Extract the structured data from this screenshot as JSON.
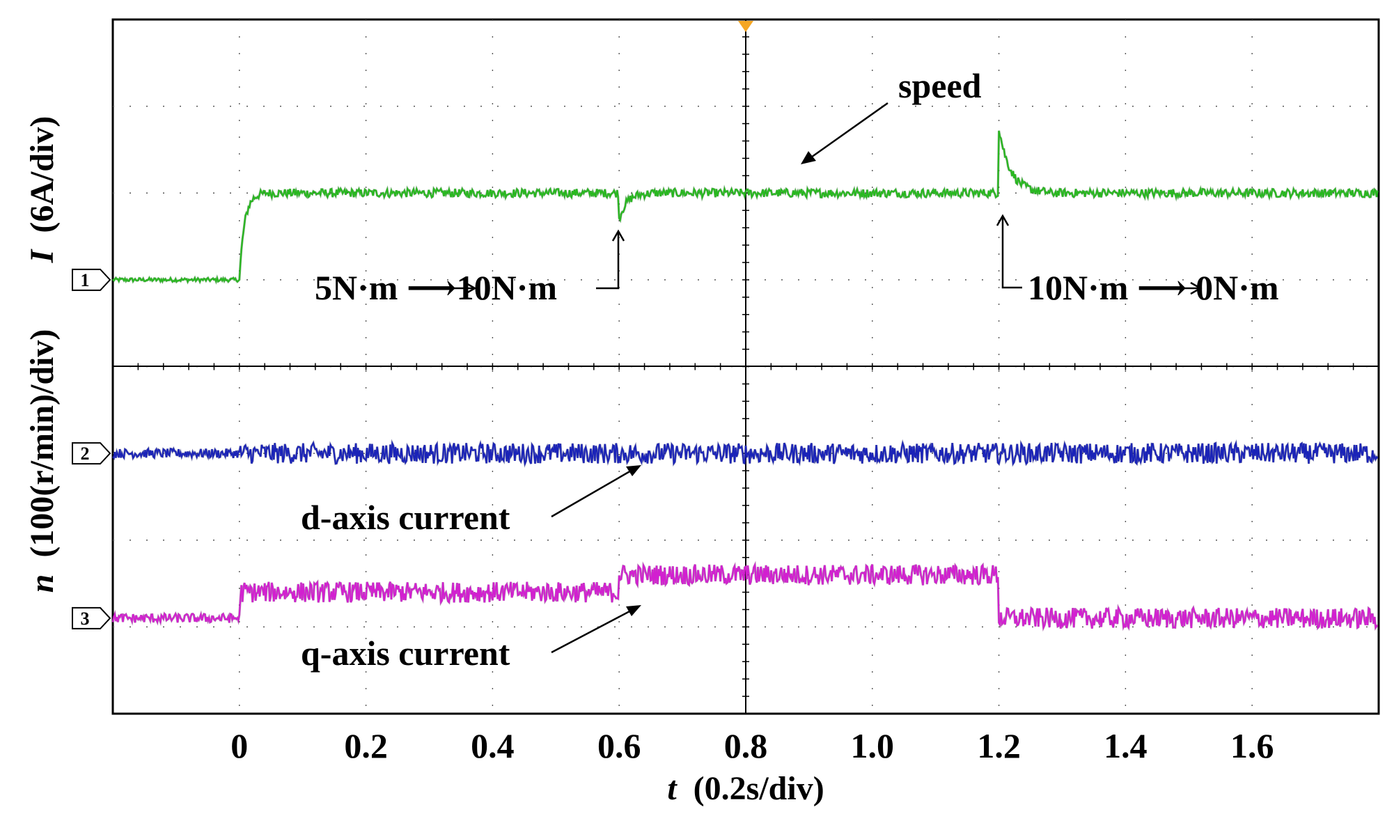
{
  "chart_data": {
    "type": "line",
    "title": "",
    "xlabel_var": "t",
    "xlabel_unit": "(0.2s/div)",
    "ylabel_top_var": "I",
    "ylabel_top_unit": "(6A/div)",
    "ylabel_bottom_var": "n",
    "ylabel_bottom_unit": "(100(r/min)/div)",
    "x_ticks": [
      "0",
      "0.2",
      "0.4",
      "0.6",
      "0.8",
      "1.0",
      "1.2",
      "1.4",
      "1.6"
    ],
    "xlim": [
      -0.2,
      1.8
    ],
    "ylim_div": [
      0,
      8
    ],
    "grid": true,
    "series": [
      {
        "name": "speed",
        "channel": "1",
        "color": "#27b81e",
        "dark": "#136e10",
        "baseline_div": 5.0,
        "events": [
          {
            "t": 0.0,
            "level_div": 6.0,
            "note": "startup step"
          },
          {
            "t": 0.6,
            "dip_div": -0.3,
            "note": "load 5N·m→10N·m"
          },
          {
            "t": 1.2,
            "spike_div": 0.75,
            "note": "load 10N·m→0N·m"
          }
        ]
      },
      {
        "name": "d-axis current",
        "channel": "2",
        "color": "#1a23b8",
        "dark": "#0d136b",
        "baseline_div": 3.0,
        "events": []
      },
      {
        "name": "q-axis current",
        "channel": "3",
        "color": "#d21fd0",
        "dark": "#7a1278",
        "baseline_div": 1.1,
        "events": [
          {
            "t": 0.0,
            "level_div": 1.4
          },
          {
            "t": 0.6,
            "level_div": 1.6
          },
          {
            "t": 1.2,
            "level_div": 1.1
          }
        ]
      }
    ],
    "channel_markers": [
      "1",
      "2",
      "3"
    ],
    "annotations": {
      "speed": "speed",
      "load_up": "5N·m ⟶10N·m",
      "load_down": "10N·m ⟶ 0N·m",
      "d_axis": "d-axis current",
      "q_axis": "q-axis current"
    }
  }
}
